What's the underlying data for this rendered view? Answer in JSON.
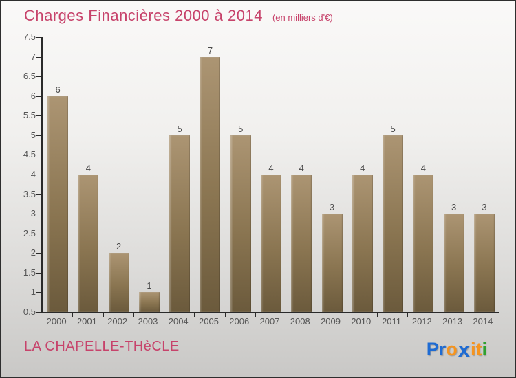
{
  "header": {
    "title": "Charges Financières 2000 à 2014",
    "subtitle": "(en milliers d'€)"
  },
  "chart_data": {
    "type": "bar",
    "title": "Charges Financières 2000 à 2014",
    "unit_note": "(en milliers d'€)",
    "categories": [
      "2000",
      "2001",
      "2002",
      "2003",
      "2004",
      "2005",
      "2006",
      "2007",
      "2008",
      "2009",
      "2010",
      "2011",
      "2012",
      "2013",
      "2014"
    ],
    "values": [
      6,
      4,
      2,
      1,
      5,
      7,
      5,
      4,
      4,
      3,
      4,
      5,
      4,
      3,
      3
    ],
    "ylim": [
      0.5,
      7.5
    ],
    "yticks": [
      7.5,
      7,
      6.5,
      6,
      5.5,
      5,
      4.5,
      4,
      3.5,
      3,
      2.5,
      2,
      1.5,
      1,
      0.5
    ],
    "grid": false,
    "legend": "none",
    "bar_color_top": "#ac9573",
    "bar_color_bottom": "#6b5a3c",
    "axis_color": "#2a2a2a",
    "tick_label_color": "#565656",
    "value_label_color": "#4a4a4a"
  },
  "footer": {
    "commune": "LA CHAPELLE-THèCLE",
    "logo": {
      "brand": "Proxiti",
      "letters": [
        {
          "text": "P",
          "color": "#1e6bd3"
        },
        {
          "text": "r",
          "color": "#1e6bd3"
        },
        {
          "text": "o",
          "color": "#f7941d"
        },
        {
          "text": "x",
          "color": "#1e6bd3"
        },
        {
          "text": "i",
          "color": "#f7941d"
        },
        {
          "text": "t",
          "color": "#f7941d"
        },
        {
          "text": "i",
          "color": "#2fa12f"
        }
      ]
    }
  },
  "colors": {
    "accent_pink": "#c7436b",
    "background_top": "#faf9f8",
    "background_bottom": "#c9c8c6"
  }
}
